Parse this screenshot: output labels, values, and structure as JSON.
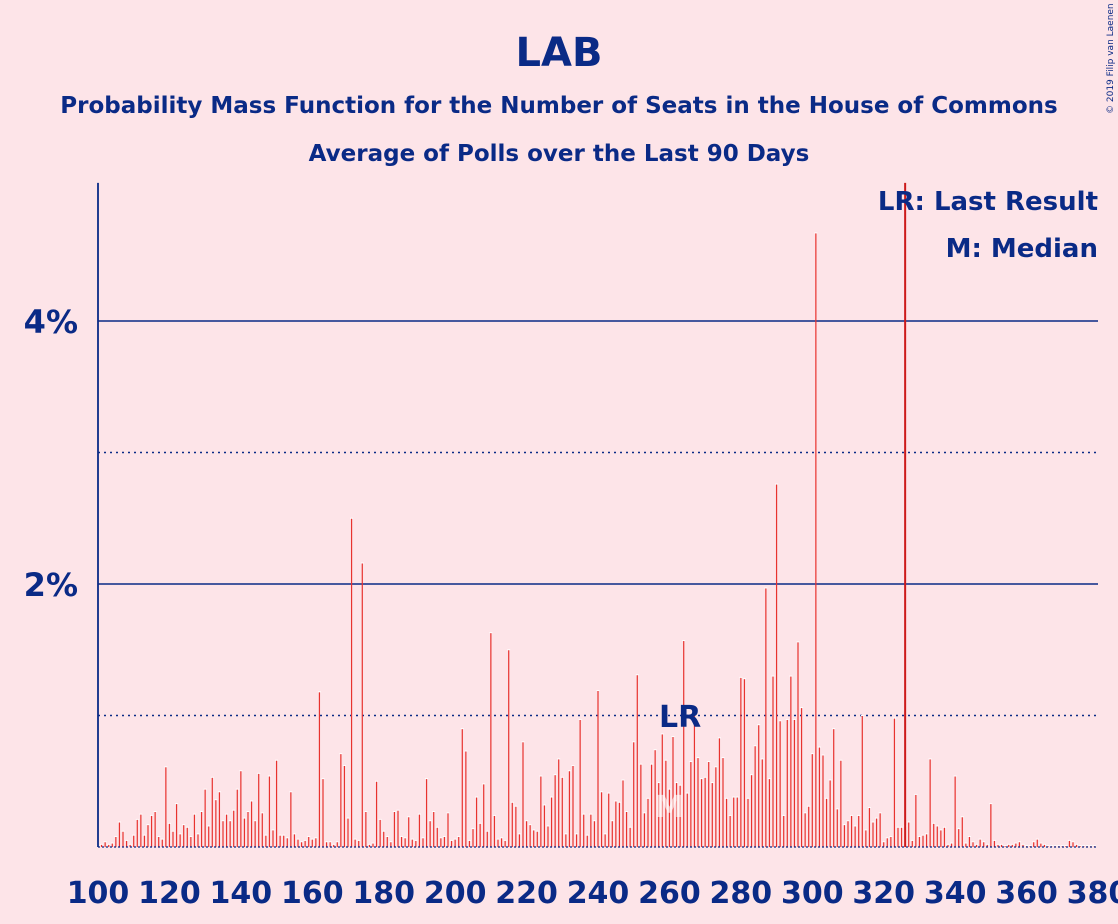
{
  "copyright": "© 2019 Filip van Laenen",
  "chart_data": {
    "type": "bar",
    "title": "LAB",
    "subtitle": "Probability Mass Function for the Number of Seats in the House of Commons",
    "subtitle2": "Average of Polls over the Last 90 Days",
    "legend": [
      "LR: Last Result",
      "M: Median"
    ],
    "legend_placement": "top-right",
    "last_result": 326,
    "last_result_label": "LR",
    "median": 260,
    "median_label": "M",
    "lr_label_seat": 263,
    "xlim": [
      100,
      380
    ],
    "ylim": [
      0,
      5.05
    ],
    "xticks": [
      100,
      120,
      140,
      160,
      180,
      200,
      220,
      240,
      260,
      280,
      300,
      320,
      340,
      360,
      380
    ],
    "xtick_labels": [
      "100",
      "120",
      "140",
      "160",
      "180",
      "200",
      "220",
      "240",
      "260",
      "280",
      "300",
      "320",
      "340",
      "360",
      "380"
    ],
    "yticks_solid": [
      2,
      4
    ],
    "ytick_labels": [
      "2%",
      "4%"
    ],
    "ygrid_dotted": [
      1,
      3
    ],
    "bar_color": "#e8322e",
    "lr_line_color": "#cc1a1a",
    "axis_color": "#0a2a86",
    "x_start": 100,
    "values": [
      0.01,
      0.02,
      0.04,
      0.02,
      0.03,
      0.08,
      0.19,
      0.12,
      0.05,
      0.02,
      0.09,
      0.21,
      0.25,
      0.09,
      0.17,
      0.24,
      0.27,
      0.08,
      0.06,
      0.61,
      0.18,
      0.12,
      0.33,
      0.1,
      0.17,
      0.15,
      0.08,
      0.25,
      0.1,
      0.27,
      0.44,
      0.16,
      0.53,
      0.36,
      0.42,
      0.2,
      0.25,
      0.2,
      0.28,
      0.44,
      0.58,
      0.22,
      0.27,
      0.35,
      0.2,
      0.56,
      0.26,
      0.09,
      0.54,
      0.13,
      0.66,
      0.09,
      0.09,
      0.07,
      0.42,
      0.1,
      0.06,
      0.04,
      0.05,
      0.08,
      0.06,
      0.07,
      1.18,
      0.52,
      0.04,
      0.04,
      0.02,
      0.04,
      0.71,
      0.62,
      0.22,
      2.5,
      0.06,
      0.05,
      2.16,
      0.27,
      0.02,
      0.03,
      0.5,
      0.21,
      0.12,
      0.08,
      0.04,
      0.27,
      0.28,
      0.08,
      0.07,
      0.23,
      0.06,
      0.05,
      0.25,
      0.07,
      0.52,
      0.2,
      0.27,
      0.15,
      0.07,
      0.08,
      0.26,
      0.05,
      0.06,
      0.08,
      0.9,
      0.73,
      0.05,
      0.14,
      0.38,
      0.18,
      0.48,
      0.12,
      1.63,
      0.24,
      0.06,
      0.07,
      0.05,
      1.5,
      0.34,
      0.31,
      0.1,
      0.8,
      0.2,
      0.17,
      0.13,
      0.12,
      0.54,
      0.32,
      0.16,
      0.38,
      0.55,
      0.67,
      0.53,
      0.1,
      0.58,
      0.62,
      0.1,
      0.97,
      0.25,
      0.09,
      0.25,
      0.2,
      1.19,
      0.42,
      0.1,
      0.41,
      0.2,
      0.35,
      0.34,
      0.51,
      0.27,
      0.15,
      0.8,
      1.31,
      0.63,
      0.26,
      0.37,
      0.63,
      0.74,
      0.49,
      0.86,
      0.66,
      0.44,
      0.84,
      0.49,
      0.47,
      1.57,
      0.41,
      0.65,
      1.03,
      0.68,
      0.52,
      0.53,
      0.65,
      0.49,
      0.61,
      0.83,
      0.68,
      0.37,
      0.24,
      0.38,
      0.38,
      1.29,
      1.28,
      0.37,
      0.55,
      0.77,
      0.93,
      0.67,
      1.97,
      0.52,
      1.3,
      2.76,
      0.96,
      0.24,
      0.97,
      1.3,
      0.97,
      1.56,
      1.06,
      0.26,
      0.31,
      0.71,
      4.67,
      0.76,
      0.7,
      0.37,
      0.51,
      0.9,
      0.29,
      0.66,
      0.17,
      0.2,
      0.24,
      0.16,
      0.24,
      1.0,
      0.13,
      0.3,
      0.19,
      0.22,
      0.26,
      0.04,
      0.07,
      0.08,
      0.98,
      0.15,
      0.15,
      0.16,
      0.19,
      0.05,
      0.4,
      0.08,
      0.09,
      0.1,
      0.67,
      0.18,
      0.16,
      0.13,
      0.15,
      0.02,
      0.03,
      0.54,
      0.14,
      0.23,
      0.03,
      0.08,
      0.04,
      0.02,
      0.06,
      0.04,
      0.02,
      0.33,
      0.05,
      0.02,
      0.02,
      0.01,
      0.02,
      0.02,
      0.03,
      0.04,
      0.02,
      0.01,
      0.01,
      0.04,
      0.06,
      0.03,
      0.02,
      0.01,
      0.01,
      0.01,
      0.01,
      0.01,
      0.01,
      0.05,
      0.04,
      0.02,
      0.01,
      0.01,
      0.01,
      0.01,
      0.01
    ]
  }
}
